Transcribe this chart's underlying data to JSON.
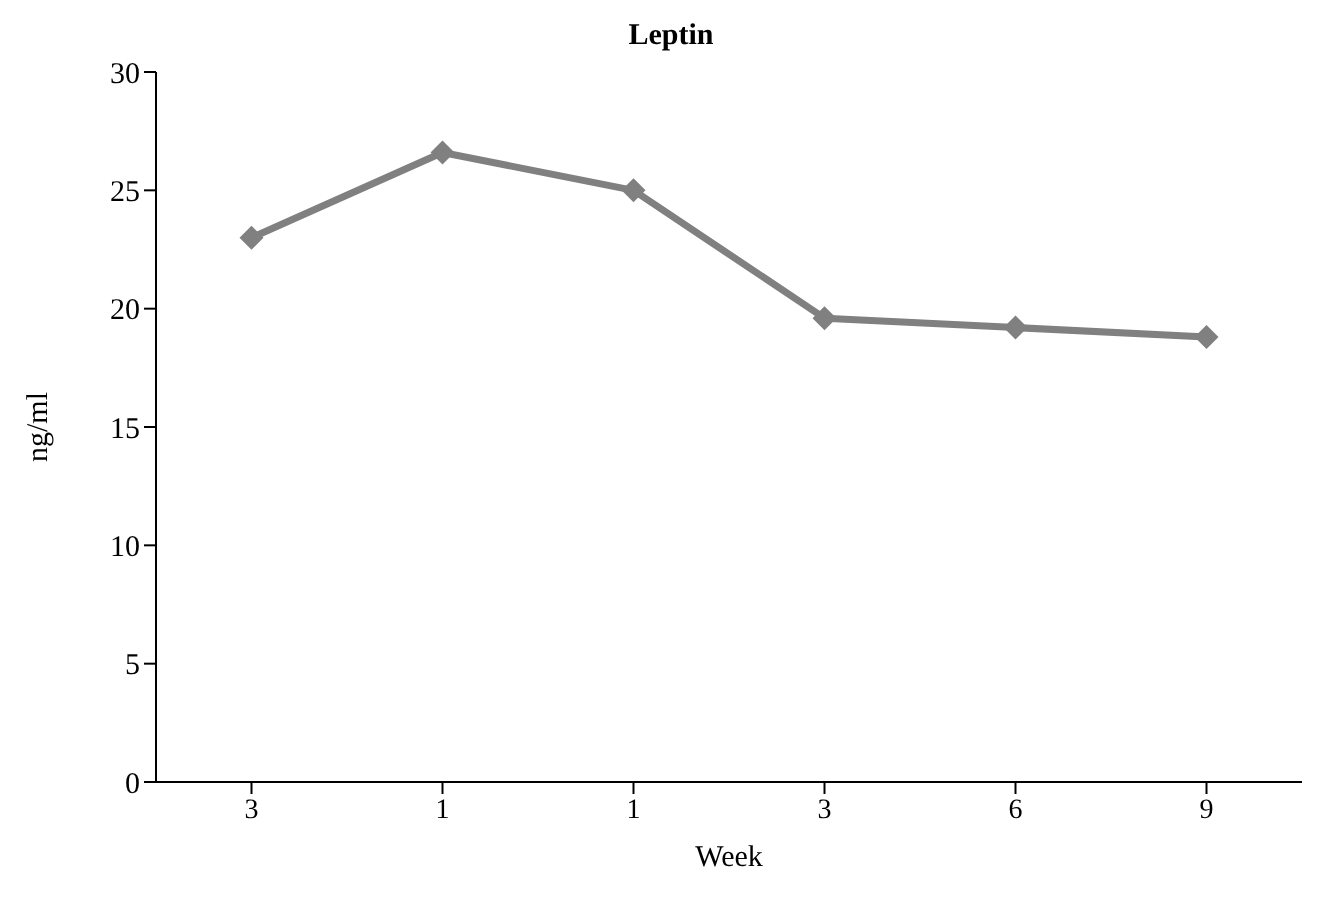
{
  "chart_data": {
    "type": "line",
    "title": "Leptin",
    "xlabel": "Week",
    "ylabel": "ng/ml",
    "categories": [
      "3",
      "1",
      "1",
      "3",
      "6",
      "9"
    ],
    "series": [
      {
        "color": "#808080",
        "values": [
          23.0,
          26.6,
          25.0,
          19.6,
          19.2,
          18.8
        ]
      }
    ],
    "ylim": [
      0,
      30
    ],
    "yticks": [
      0,
      5,
      10,
      15,
      20,
      25,
      30
    ],
    "grid": false,
    "legend": false,
    "marker": "diamond",
    "line_style": "solid"
  }
}
